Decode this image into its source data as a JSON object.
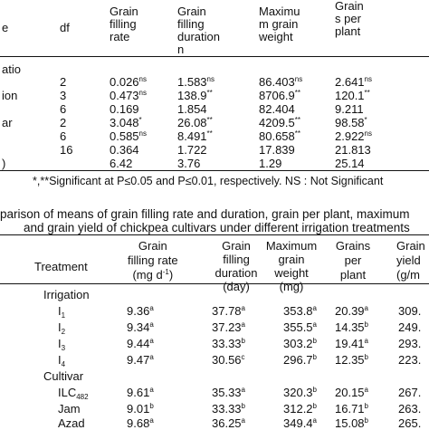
{
  "table1": {
    "headers": {
      "source": "e",
      "df": "df",
      "rate": [
        "Grain",
        "filling",
        "rate"
      ],
      "duration": [
        "Grain",
        "filling",
        "duration",
        "n"
      ],
      "weight": [
        "Maximu",
        "m    grain",
        "weight"
      ],
      "plant": [
        "Grain",
        "s per",
        "plant"
      ]
    },
    "rows": [
      {
        "source": "atio",
        "df": "",
        "rate": "",
        "rate_sup": "",
        "duration": "",
        "duration_sup": "",
        "weight": "",
        "weight_sup": "",
        "plant": "",
        "plant_sup": ""
      },
      {
        "source": "",
        "df": "2",
        "rate": "0.026",
        "rate_sup": "ns",
        "duration": "1.583",
        "duration_sup": "ns",
        "weight": "86.403",
        "weight_sup": "ns",
        "plant": "2.641",
        "plant_sup": "ns"
      },
      {
        "source": "ion",
        "df": "3",
        "rate": "0.473",
        "rate_sup": "ns",
        "duration": "138.9",
        "duration_sup": "**",
        "weight": "8706.9",
        "weight_sup": "**",
        "plant": "120.1",
        "plant_sup": "**"
      },
      {
        "source": "",
        "df": "6",
        "rate": "0.169",
        "rate_sup": "",
        "duration": "1.854",
        "duration_sup": "",
        "weight": "82.404",
        "weight_sup": "",
        "plant": "9.211",
        "plant_sup": ""
      },
      {
        "source": "ar",
        "df": "2",
        "rate": "3.048",
        "rate_sup": "*",
        "duration": "26.08",
        "duration_sup": "**",
        "weight": "4209.5",
        "weight_sup": "**",
        "plant": "98.58",
        "plant_sup": "*"
      },
      {
        "source": "",
        "df": "6",
        "rate": "0.585",
        "rate_sup": "ns",
        "duration": "8.491",
        "duration_sup": "**",
        "weight": "80.658",
        "weight_sup": "**",
        "plant": "2.922",
        "plant_sup": "ns"
      },
      {
        "source": "",
        "df": "16",
        "rate": "0.364",
        "rate_sup": "",
        "duration": "1.722",
        "duration_sup": "",
        "weight": "17.839",
        "weight_sup": "",
        "plant": "21.813",
        "plant_sup": ""
      },
      {
        "source": ")",
        "df": "",
        "rate": "6.42",
        "rate_sup": "",
        "duration": "3.76",
        "duration_sup": "",
        "weight": "1.29",
        "weight_sup": "",
        "plant": "25.14",
        "plant_sup": ""
      }
    ],
    "footnote": "*,**Significant at P≤0.05 and P≤0.01, respectively. NS : Not Significant"
  },
  "table2": {
    "title_line1": "parison of means of grain filling rate and duration, grain per plant, maximum",
    "title_line2": "and grain yield of chickpea cultivars under different irrigation treatments",
    "headers": {
      "treatment": "Treatment",
      "rate": [
        "Grain",
        "filling rate",
        "(mg d",
        "-1",
        ")"
      ],
      "duration": [
        "Grain",
        "filling",
        "duration",
        "(day)"
      ],
      "weight": [
        "Maximum",
        "grain",
        "weight",
        "(mg)"
      ],
      "plant": [
        "Grains",
        "per",
        "plant"
      ],
      "yield": [
        "Grain",
        "yield",
        "(g/m"
      ]
    },
    "rows": [
      {
        "label": "Irrigation",
        "sub": "",
        "kind": "group",
        "rate": "",
        "rate_sup": "",
        "duration": "",
        "duration_sup": "",
        "weight": "",
        "weight_sup": "",
        "plant": "",
        "plant_sup": "",
        "yield": ""
      },
      {
        "label": "I",
        "sub": "1",
        "kind": "item",
        "rate": "9.36",
        "rate_sup": "a",
        "duration": "37.78",
        "duration_sup": "a",
        "weight": "353.8",
        "weight_sup": "a",
        "plant": "20.39",
        "plant_sup": "a",
        "yield": "309."
      },
      {
        "label": "I",
        "sub": "2",
        "kind": "item",
        "rate": "9.34",
        "rate_sup": "a",
        "duration": "37.23",
        "duration_sup": "a",
        "weight": "355.5",
        "weight_sup": "a",
        "plant": "14.35",
        "plant_sup": "b",
        "yield": "249."
      },
      {
        "label": "I",
        "sub": "3",
        "kind": "item",
        "rate": "9.44",
        "rate_sup": "a",
        "duration": "33.33",
        "duration_sup": "b",
        "weight": "303.2",
        "weight_sup": "b",
        "plant": "19.41",
        "plant_sup": "a",
        "yield": "293."
      },
      {
        "label": "I",
        "sub": "4",
        "kind": "item",
        "rate": "9.47",
        "rate_sup": "a",
        "duration": "30.56",
        "duration_sup": "c",
        "weight": "296.7",
        "weight_sup": "b",
        "plant": "12.35",
        "plant_sup": "b",
        "yield": "223."
      },
      {
        "label": "Cultivar",
        "sub": "",
        "kind": "group",
        "rate": "",
        "rate_sup": "",
        "duration": "",
        "duration_sup": "",
        "weight": "",
        "weight_sup": "",
        "plant": "",
        "plant_sup": "",
        "yield": ""
      },
      {
        "label": "ILC",
        "sub": "482",
        "kind": "item",
        "rate": "9.61",
        "rate_sup": "a",
        "duration": "35.33",
        "duration_sup": "a",
        "weight": "320.3",
        "weight_sup": "b",
        "plant": "20.15",
        "plant_sup": "a",
        "yield": "267."
      },
      {
        "label": "Jam",
        "sub": "",
        "kind": "item",
        "rate": "9.01",
        "rate_sup": "b",
        "duration": "33.33",
        "duration_sup": "b",
        "weight": "312.2",
        "weight_sup": "b",
        "plant": "16.71",
        "plant_sup": "b",
        "yield": "263."
      },
      {
        "label": "Azad",
        "sub": "",
        "kind": "item",
        "rate": "9.68",
        "rate_sup": "a",
        "duration": "36.25",
        "duration_sup": "a",
        "weight": "349.4",
        "weight_sup": "a",
        "plant": "15.08",
        "plant_sup": "b",
        "yield": "265."
      }
    ]
  }
}
